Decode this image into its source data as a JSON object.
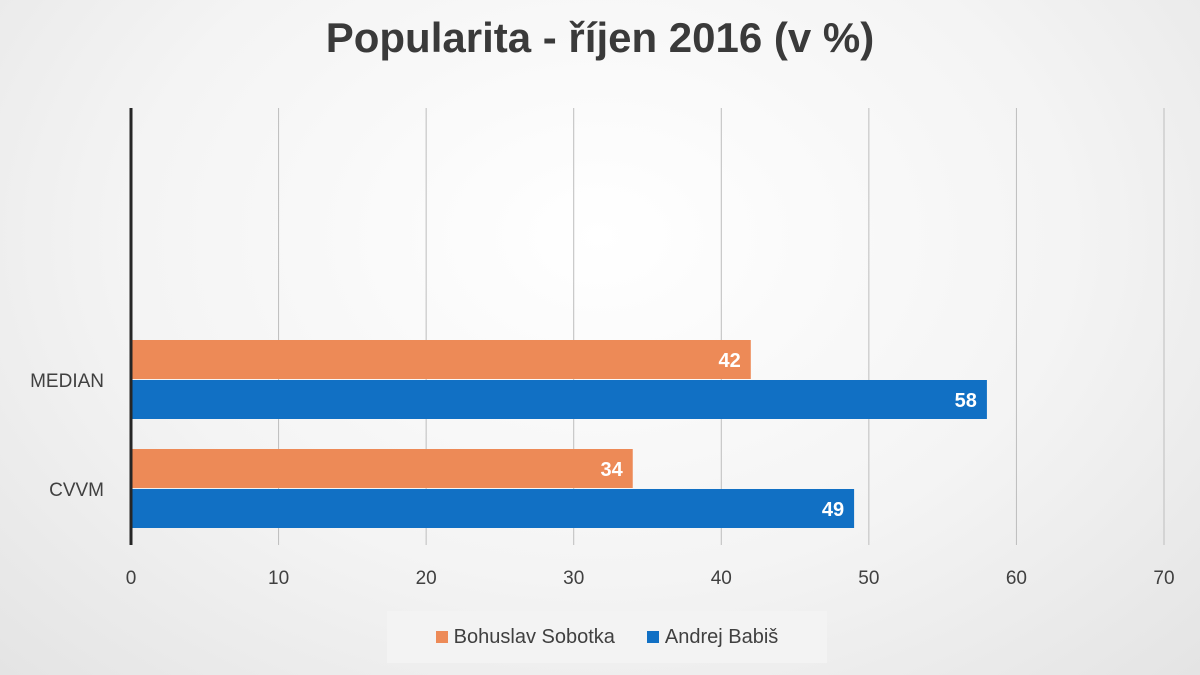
{
  "chart_data": {
    "type": "bar",
    "orientation": "horizontal",
    "title": "Popularita - říjen 2016 (v %)",
    "categories": [
      "MEDIAN",
      "CVVM"
    ],
    "series": [
      {
        "name": "Bohuslav Sobotka",
        "color": "#ed8a57",
        "values": [
          42,
          34
        ]
      },
      {
        "name": "Andrej Babiš",
        "color": "#1170c4",
        "values": [
          58,
          49
        ]
      }
    ],
    "xlim": [
      0,
      70
    ],
    "xticks": [
      0,
      10,
      20,
      30,
      40,
      50,
      60,
      70
    ],
    "grid": true,
    "legend_position": "bottom",
    "data_labels": true
  }
}
